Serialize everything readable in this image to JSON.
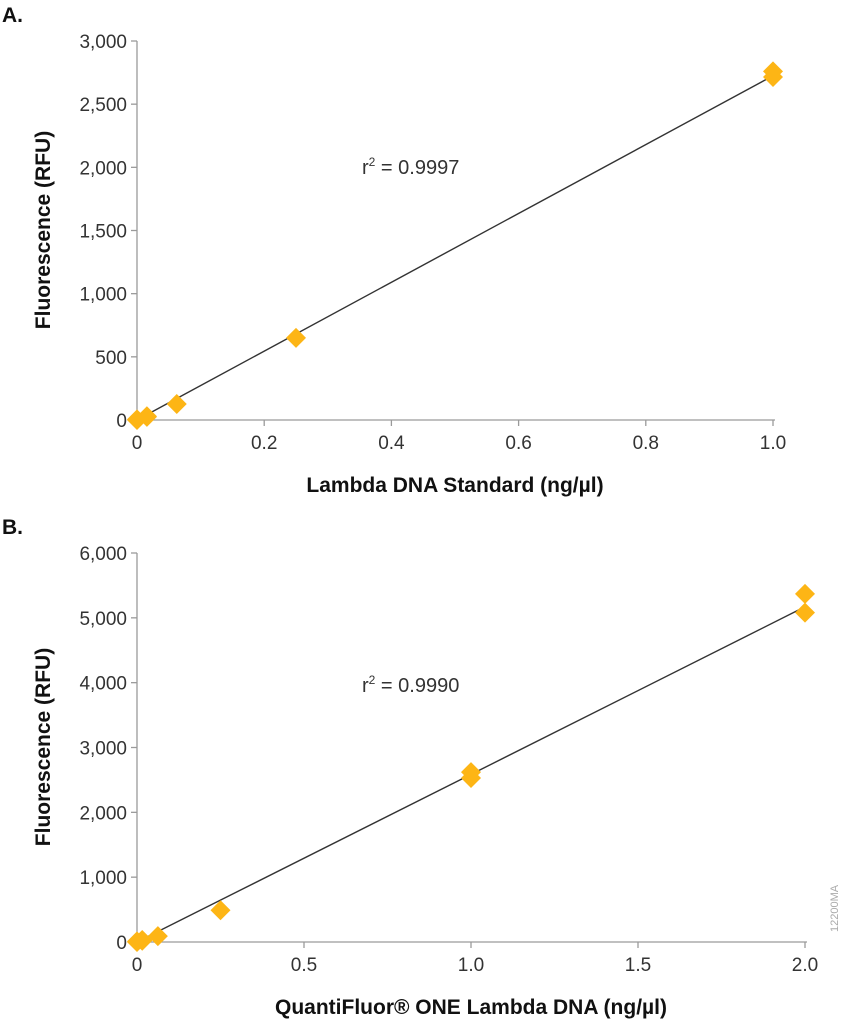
{
  "marker_color": "#FDB515",
  "line_color": "#333333",
  "axis_color": "#9a9a9a",
  "figure_code": "12200MA",
  "chart_data": [
    {
      "type": "scatter",
      "panel_label": "A.",
      "xlabel": "Lambda DNA Standard (ng/µl)",
      "ylabel": "Fluorescence (RFU)",
      "xlim": [
        0,
        1.0
      ],
      "ylim": [
        0,
        3000
      ],
      "xticks": [
        0,
        0.2,
        0.4,
        0.6,
        0.8,
        1.0
      ],
      "xtick_labels": [
        "0",
        "0.2",
        "0.4",
        "0.6",
        "0.8",
        "1.0"
      ],
      "yticks": [
        0,
        500,
        1000,
        1500,
        2000,
        2500,
        3000
      ],
      "ytick_labels": [
        "0",
        "500",
        "1,000",
        "1,500",
        "2,000",
        "2,500",
        "3,000"
      ],
      "annotation": {
        "base": "r",
        "sup": "2",
        "rest": " = 0.9997"
      },
      "points": [
        {
          "x": 0,
          "y": 0
        },
        {
          "x": 0,
          "y": 5
        },
        {
          "x": 0.0156,
          "y": 25
        },
        {
          "x": 0.0156,
          "y": 30
        },
        {
          "x": 0.0625,
          "y": 127
        },
        {
          "x": 0.25,
          "y": 650
        },
        {
          "x": 1.0,
          "y": 2715
        },
        {
          "x": 1.0,
          "y": 2760
        }
      ],
      "fit_line": {
        "x": [
          0,
          1.0
        ],
        "y": [
          0,
          2725
        ]
      },
      "grid": false
    },
    {
      "type": "scatter",
      "panel_label": "B.",
      "xlabel": "QuantiFluor® ONE Lambda DNA (ng/µl)",
      "ylabel": "Fluorescence (RFU)",
      "xlim": [
        0,
        2.0
      ],
      "ylim": [
        0,
        6000
      ],
      "xticks": [
        0,
        0.5,
        1.0,
        1.5,
        2.0
      ],
      "xtick_labels": [
        "0",
        "0.5",
        "1.0",
        "1.5",
        "2.0"
      ],
      "yticks": [
        0,
        1000,
        2000,
        3000,
        4000,
        5000,
        6000
      ],
      "ytick_labels": [
        "0",
        "1,000",
        "2,000",
        "3,000",
        "4,000",
        "5,000",
        "6,000"
      ],
      "annotation": {
        "base": "r",
        "sup": "2",
        "rest": " = 0.9990"
      },
      "points": [
        {
          "x": 0,
          "y": 0
        },
        {
          "x": 0,
          "y": 10
        },
        {
          "x": 0.0156,
          "y": 20
        },
        {
          "x": 0.0156,
          "y": 30
        },
        {
          "x": 0.0625,
          "y": 90
        },
        {
          "x": 0.25,
          "y": 490
        },
        {
          "x": 1.0,
          "y": 2530
        },
        {
          "x": 1.0,
          "y": 2620
        },
        {
          "x": 2.0,
          "y": 5080
        },
        {
          "x": 2.0,
          "y": 5370
        }
      ],
      "fit_line": {
        "x": [
          0,
          2.0
        ],
        "y": [
          0,
          5170
        ]
      },
      "grid": false
    }
  ]
}
